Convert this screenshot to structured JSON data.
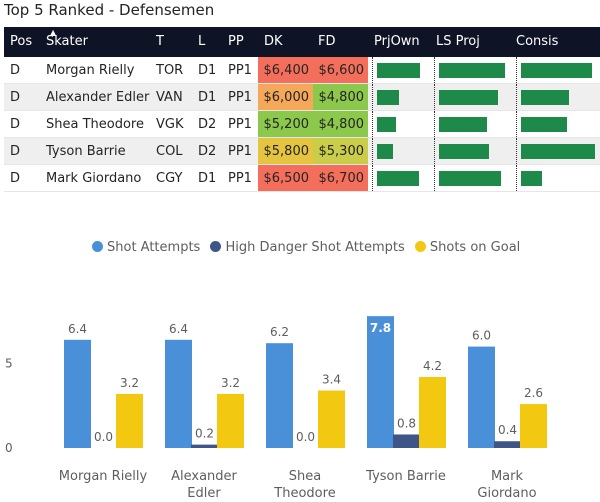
{
  "title": "Top 5 Ranked - Defensemen",
  "table": {
    "headers": [
      "Pos",
      "Skater",
      "T",
      "L",
      "PP",
      "DK",
      "FD",
      "PrjOwn",
      "LS Proj",
      "Consis"
    ],
    "rows": [
      {
        "pos": "D",
        "skater": "Morgan Rielly",
        "team": "TOR",
        "line": "D1",
        "pp": "PP1",
        "dk": "$6,400",
        "fd": "$6,600",
        "dk_color": "#f36f5c",
        "fd_color": "#f36f5c",
        "prjown": 0.79,
        "lsproj": 0.94,
        "consis": 0.96
      },
      {
        "pos": "D",
        "skater": "Alexander Edler",
        "team": "VAN",
        "line": "D1",
        "pp": "PP1",
        "dk": "$6,000",
        "fd": "$4,800",
        "dk_color": "#f5a75a",
        "fd_color": "#8cc84b",
        "prjown": 0.4,
        "lsproj": 0.84,
        "consis": 0.65
      },
      {
        "pos": "D",
        "skater": "Shea Theodore",
        "team": "VGK",
        "line": "D2",
        "pp": "PP1",
        "dk": "$5,200",
        "fd": "$4,800",
        "dk_color": "#8cc84b",
        "fd_color": "#8cc84b",
        "prjown": 0.35,
        "lsproj": 0.68,
        "consis": 0.62
      },
      {
        "pos": "D",
        "skater": "Tyson Barrie",
        "team": "COL",
        "line": "D2",
        "pp": "PP1",
        "dk": "$5,800",
        "fd": "$5,300",
        "dk_color": "#e5c540",
        "fd_color": "#c9cd4a",
        "prjown": 0.3,
        "lsproj": 0.72,
        "consis": 1.0
      },
      {
        "pos": "D",
        "skater": "Mark Giordano",
        "team": "CGY",
        "line": "D1",
        "pp": "PP1",
        "dk": "$6,500",
        "fd": "$6,700",
        "dk_color": "#f36f5c",
        "fd_color": "#f36f5c",
        "prjown": 0.77,
        "lsproj": 0.89,
        "consis": 0.29
      }
    ],
    "bar_color": "#1e8a4a"
  },
  "chart_data": {
    "type": "bar",
    "categories": [
      "Morgan Rielly",
      "Alexander Edler",
      "Shea Theodore",
      "Tyson Barrie",
      "Mark Giordano"
    ],
    "category_lines": [
      [
        "Morgan Rielly"
      ],
      [
        "Alexander",
        "Edler"
      ],
      [
        "Shea",
        "Theodore"
      ],
      [
        "Tyson Barrie"
      ],
      [
        "Mark",
        "Giordano"
      ]
    ],
    "series": [
      {
        "name": "Shot Attempts",
        "color": "#4a90d9",
        "values": [
          6.4,
          6.4,
          6.2,
          7.8,
          6.0
        ],
        "labels": [
          "6.4",
          "6.4",
          "6.2",
          "7.8",
          "6.0"
        ]
      },
      {
        "name": "High Danger Shot Attempts",
        "color": "#3e5687",
        "values": [
          0.0,
          0.2,
          0.0,
          0.8,
          0.4
        ],
        "labels": [
          "0.0",
          "0.2",
          "0.0",
          "0.8",
          "0.4"
        ]
      },
      {
        "name": "Shots on Goal",
        "color": "#f2c811",
        "values": [
          3.2,
          3.2,
          3.4,
          4.2,
          2.6
        ],
        "labels": [
          "3.2",
          "3.2",
          "3.4",
          "4.2",
          "2.6"
        ]
      }
    ],
    "highlight_label_index": {
      "series": 0,
      "category": 3
    },
    "yticks": [
      0,
      5
    ],
    "ytick_labels": [
      "0",
      "5"
    ],
    "ylim": [
      0,
      8.4
    ],
    "legend_position": "top"
  }
}
